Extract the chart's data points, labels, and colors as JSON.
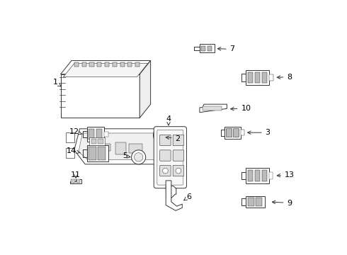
{
  "background_color": "#ffffff",
  "line_color": "#333333",
  "text_color": "#000000",
  "figsize": [
    4.9,
    3.6
  ],
  "dpi": 100
}
